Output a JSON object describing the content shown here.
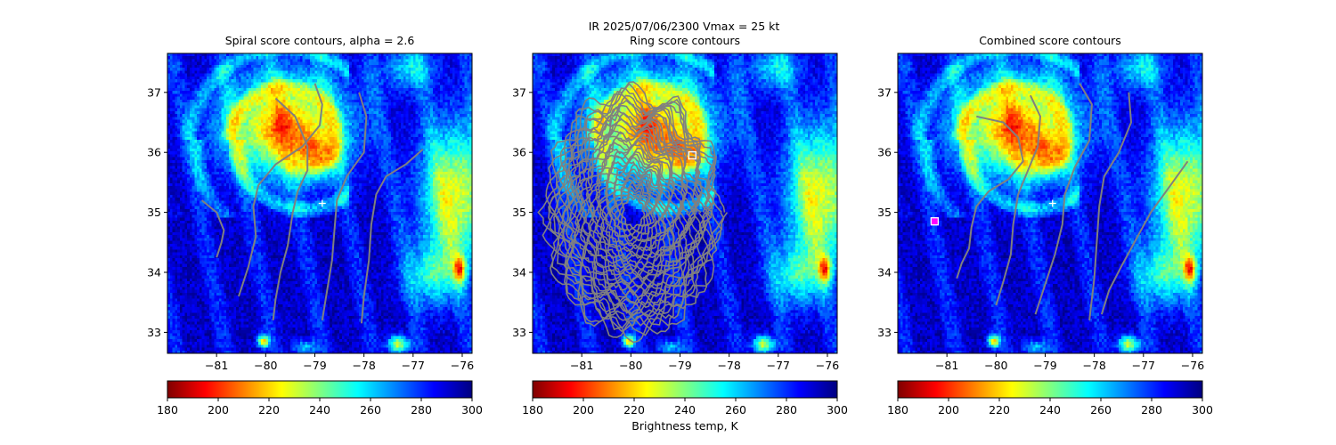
{
  "figure": {
    "suptitle_line1": "IR  2025/07/06/2300    Vmax = 25 kt"
  },
  "colormap": {
    "name": "jet_r",
    "stops": [
      "#800000",
      "#ff0000",
      "#ff8000",
      "#ffff00",
      "#80ff80",
      "#00ffff",
      "#0080ff",
      "#0000ff",
      "#000080"
    ]
  },
  "colors": {
    "contour": "#808080",
    "center_marker": "#ffffff",
    "combined_marker_fill": "#ff00ff",
    "combined_marker_edge": "#ffffff"
  },
  "chart_data": [
    {
      "type": "heatmap",
      "title": "Spiral score contours, alpha =  2.6",
      "xlim": [
        -82.0,
        -75.8
      ],
      "ylim": [
        32.65,
        37.65
      ],
      "xticks": [
        -81,
        -80,
        -79,
        -78,
        -77,
        -76
      ],
      "yticks": [
        33,
        34,
        35,
        36,
        37
      ],
      "colorbar": {
        "min": 180,
        "max": 300,
        "ticks": [
          180,
          200,
          220,
          240,
          260,
          280,
          300
        ],
        "label": ""
      },
      "center_marker": {
        "x": -78.85,
        "y": 35.15
      },
      "contours": [
        [
          [
            -81.3,
            35.2
          ],
          [
            -81.0,
            35.0
          ],
          [
            -80.85,
            34.7
          ],
          [
            -80.9,
            34.5
          ],
          [
            -81.0,
            34.25
          ]
        ],
        [
          [
            -79.0,
            37.15
          ],
          [
            -78.85,
            36.8
          ],
          [
            -78.9,
            36.45
          ],
          [
            -79.25,
            36.1
          ],
          [
            -79.8,
            35.8
          ],
          [
            -80.15,
            35.45
          ],
          [
            -80.25,
            35.1
          ],
          [
            -80.2,
            34.6
          ],
          [
            -80.35,
            34.1
          ],
          [
            -80.55,
            33.6
          ]
        ],
        [
          [
            -79.8,
            36.9
          ],
          [
            -79.4,
            36.6
          ],
          [
            -79.15,
            36.1
          ],
          [
            -79.15,
            35.7
          ],
          [
            -79.35,
            35.35
          ],
          [
            -79.45,
            35.0
          ],
          [
            -79.55,
            34.45
          ],
          [
            -79.7,
            34.0
          ],
          [
            -79.8,
            33.55
          ],
          [
            -79.85,
            33.2
          ]
        ],
        [
          [
            -78.1,
            37.0
          ],
          [
            -77.95,
            36.6
          ],
          [
            -78.0,
            36.0
          ],
          [
            -78.35,
            35.6
          ],
          [
            -78.55,
            35.2
          ],
          [
            -78.6,
            34.7
          ],
          [
            -78.65,
            34.2
          ],
          [
            -78.75,
            33.7
          ],
          [
            -78.85,
            33.2
          ]
        ],
        [
          [
            -76.8,
            36.05
          ],
          [
            -77.15,
            35.8
          ],
          [
            -77.55,
            35.6
          ],
          [
            -77.75,
            35.3
          ],
          [
            -77.85,
            34.8
          ],
          [
            -77.9,
            34.2
          ],
          [
            -78.0,
            33.6
          ],
          [
            -78.05,
            33.15
          ]
        ]
      ]
    },
    {
      "type": "heatmap",
      "title": "Ring score contours",
      "xlim": [
        -82.0,
        -75.8
      ],
      "ylim": [
        32.65,
        37.65
      ],
      "xticks": [
        -81,
        -80,
        -79,
        -78,
        -77,
        -76
      ],
      "yticks": [
        33,
        34,
        35,
        36,
        37
      ],
      "colorbar": {
        "min": 180,
        "max": 300,
        "ticks": [
          180,
          200,
          220,
          240,
          260,
          280,
          300
        ],
        "label": "Brightness temp, K"
      },
      "ring_region": {
        "cx": -79.95,
        "cy": 35.0,
        "rx": 1.75,
        "ry": 2.0
      },
      "box_marker": {
        "x": -78.75,
        "y": 35.95
      }
    },
    {
      "type": "heatmap",
      "title": "Combined score contours",
      "xlim": [
        -82.0,
        -75.8
      ],
      "ylim": [
        32.65,
        37.65
      ],
      "xticks": [
        -81,
        -80,
        -79,
        -78,
        -77,
        -76
      ],
      "yticks": [
        33,
        34,
        35,
        36,
        37
      ],
      "colorbar": {
        "min": 180,
        "max": 300,
        "ticks": [
          180,
          200,
          220,
          240,
          260,
          280,
          300
        ],
        "label": ""
      },
      "center_marker": {
        "x": -78.85,
        "y": 35.15
      },
      "box_marker": {
        "x": -81.25,
        "y": 34.85
      },
      "contours": [
        [
          [
            -80.4,
            36.6
          ],
          [
            -79.85,
            36.5
          ],
          [
            -79.55,
            36.25
          ],
          [
            -79.45,
            35.85
          ],
          [
            -79.75,
            35.55
          ],
          [
            -80.15,
            35.35
          ],
          [
            -80.4,
            35.1
          ],
          [
            -80.5,
            34.75
          ],
          [
            -80.55,
            34.4
          ],
          [
            -80.7,
            34.15
          ],
          [
            -80.8,
            33.9
          ]
        ],
        [
          [
            -79.3,
            36.95
          ],
          [
            -79.1,
            36.6
          ],
          [
            -79.15,
            36.1
          ],
          [
            -79.35,
            35.7
          ],
          [
            -79.55,
            35.3
          ],
          [
            -79.65,
            34.8
          ],
          [
            -79.7,
            34.3
          ],
          [
            -79.85,
            33.85
          ],
          [
            -80.0,
            33.45
          ]
        ],
        [
          [
            -78.3,
            37.15
          ],
          [
            -78.05,
            36.8
          ],
          [
            -78.1,
            36.2
          ],
          [
            -78.4,
            35.75
          ],
          [
            -78.6,
            35.3
          ],
          [
            -78.65,
            34.8
          ],
          [
            -78.8,
            34.3
          ],
          [
            -79.0,
            33.8
          ],
          [
            -79.2,
            33.3
          ]
        ],
        [
          [
            -77.3,
            37.0
          ],
          [
            -77.25,
            36.5
          ],
          [
            -77.5,
            36.0
          ],
          [
            -77.8,
            35.6
          ],
          [
            -77.9,
            35.1
          ],
          [
            -77.95,
            34.5
          ],
          [
            -78.0,
            33.9
          ],
          [
            -78.1,
            33.2
          ]
        ],
        [
          [
            -76.1,
            35.85
          ],
          [
            -76.45,
            35.45
          ],
          [
            -76.85,
            35.0
          ],
          [
            -77.15,
            34.55
          ],
          [
            -77.45,
            34.1
          ],
          [
            -77.7,
            33.7
          ],
          [
            -77.85,
            33.3
          ]
        ]
      ]
    }
  ]
}
